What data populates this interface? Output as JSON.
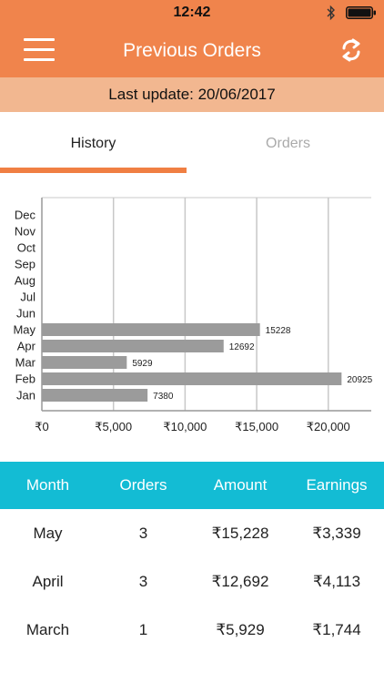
{
  "status_bar": {
    "time": "12:42",
    "icons": [
      "bluetooth-icon",
      "battery-icon"
    ]
  },
  "nav": {
    "title": "Previous Orders",
    "left_icon": "menu-icon",
    "right_icon": "refresh-icon"
  },
  "last_update": "Last update: 20/06/2017",
  "tabs": [
    {
      "label": "History",
      "active": true
    },
    {
      "label": "Orders",
      "active": false
    }
  ],
  "colors": {
    "primary": "#f0844c",
    "update_bar": "#f2b790",
    "table_header": "#13bcd4",
    "bar": "#9b9b9b"
  },
  "chart_data": {
    "type": "bar",
    "orientation": "horizontal",
    "categories": [
      "Dec",
      "Nov",
      "Oct",
      "Sep",
      "Aug",
      "Jul",
      "Jun",
      "May",
      "Apr",
      "Mar",
      "Feb",
      "Jan"
    ],
    "values": [
      0,
      0,
      0,
      0,
      0,
      0,
      0,
      15228,
      12692,
      5929,
      20925,
      7380
    ],
    "data_labels": [
      "",
      "",
      "",
      "",
      "",
      "",
      "",
      "15228",
      "12692",
      "5929",
      "20925",
      "7380"
    ],
    "x_ticks": [
      0,
      5000,
      10000,
      15000,
      20000
    ],
    "x_tick_labels": [
      "₹0",
      "₹5,000",
      "₹10,000",
      "₹15,000",
      "₹20,000"
    ],
    "xlim": [
      0,
      23000
    ],
    "grid": true
  },
  "table": {
    "headers": [
      "Month",
      "Orders",
      "Amount",
      "Earnings"
    ],
    "rows": [
      [
        "May",
        "3",
        "₹15,228",
        "₹3,339"
      ],
      [
        "April",
        "3",
        "₹12,692",
        "₹4,113"
      ],
      [
        "March",
        "1",
        "₹5,929",
        "₹1,744"
      ]
    ]
  }
}
